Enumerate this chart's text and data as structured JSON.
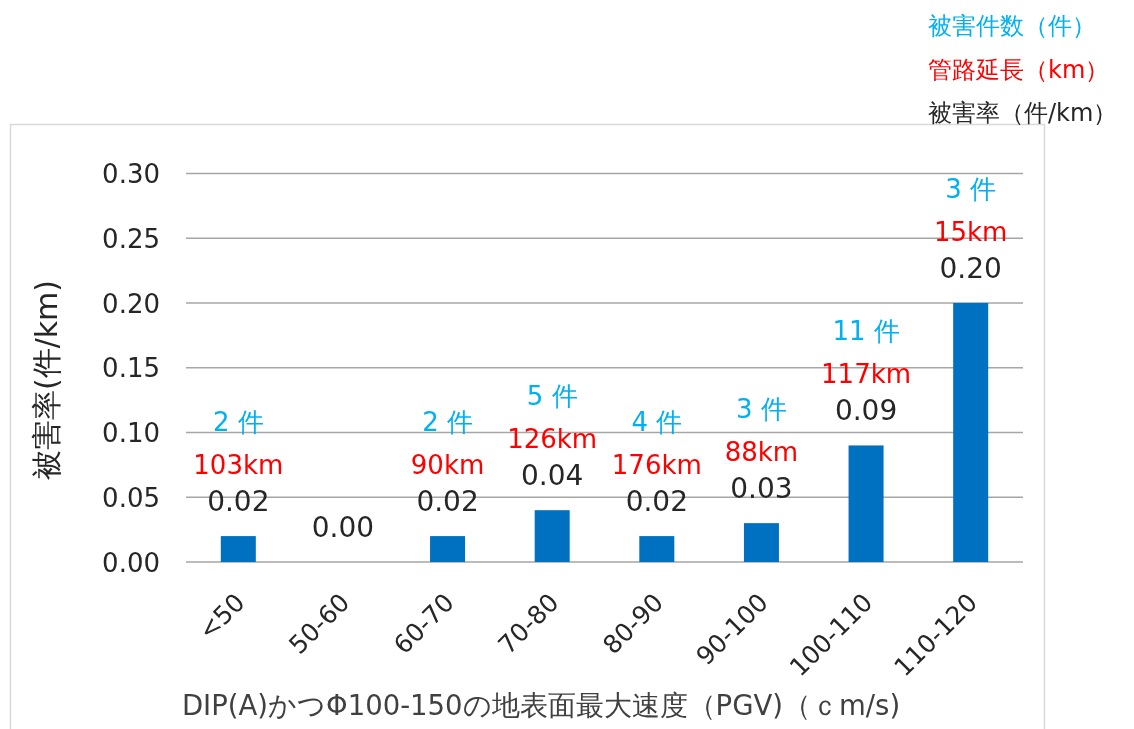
{
  "chart_data": {
    "type": "bar",
    "categories": [
      "<50",
      "50-60",
      "60-70",
      "70-80",
      "80-90",
      "90-100",
      "100-110",
      "110-120"
    ],
    "xlabel": "DIP(A)かつΦ100-150の地表面最大速度（PGV)（ｃm/s)",
    "ylabel": "被害率(件/km)",
    "ylim": [
      0,
      0.3
    ],
    "yticks": [
      {
        "value": 0,
        "label": "0.00"
      },
      {
        "value": 0.05,
        "label": "0.05"
      },
      {
        "value": 0.1,
        "label": "0.10"
      },
      {
        "value": 0.15,
        "label": "0.15"
      },
      {
        "value": 0.2,
        "label": "0.20"
      },
      {
        "value": 0.25,
        "label": "0.25"
      },
      {
        "value": 0.3,
        "label": "0.30"
      }
    ],
    "grid": "y",
    "legend": "top right",
    "series": [
      {
        "name": "被害件数（件）",
        "type": "other",
        "color": "#00b0f0",
        "values": [
          null,
          null,
          null,
          null,
          null,
          null,
          null,
          null
        ],
        "value_labels": [
          "2 件",
          null,
          "2 件",
          "5 件",
          "4 件",
          "3 件",
          "11 件",
          "3 件"
        ]
      },
      {
        "name": "管路延長（km）",
        "type": "other",
        "color": "#ff0000",
        "values": [
          null,
          null,
          null,
          null,
          null,
          null,
          null,
          null
        ],
        "value_labels": [
          "103km",
          null,
          "90km",
          "126km",
          "176km",
          "88km",
          "117km",
          "15km"
        ]
      },
      {
        "name": "被害率（件/km）",
        "type": "bar",
        "color": "#0070c0",
        "values": [
          0.02,
          0,
          0.02,
          0.04,
          0.02,
          0.03,
          0.09,
          0.2
        ],
        "value_labels": [
          "0.02",
          "0.00",
          "0.02",
          "0.04",
          "0.02",
          "0.03",
          "0.09",
          "0.20"
        ]
      }
    ]
  }
}
